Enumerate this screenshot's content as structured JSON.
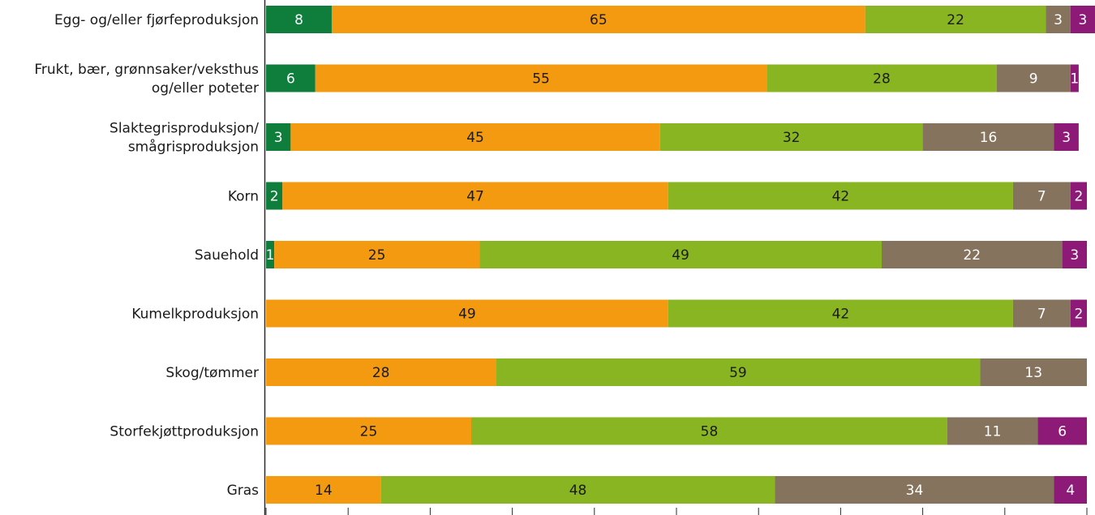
{
  "chart_data": {
    "type": "bar",
    "orientation": "horizontal",
    "stacked": true,
    "title": "",
    "xlabel": "",
    "ylabel": "",
    "xlim": [
      0,
      100
    ],
    "legend": "none",
    "grid": false,
    "categories": [
      [
        "Egg- og/eller fjørfeproduksjon"
      ],
      [
        "Frukt, bær, grønnsaker/veksthus",
        "og/eller poteter"
      ],
      [
        "Slaktegrisproduksjon/",
        "smågrisproduksjon"
      ],
      [
        "Korn"
      ],
      [
        "Sauehold"
      ],
      [
        "Kumelkproduksjon"
      ],
      [
        "Skog/tømmer"
      ],
      [
        "Storfekjøttproduksjon"
      ],
      [
        "Gras"
      ]
    ],
    "series": [
      {
        "color": "#0f7d3c",
        "label_color": "#ffffff",
        "values": [
          8,
          6,
          3,
          2,
          1,
          0,
          0,
          0,
          0
        ]
      },
      {
        "color": "#f39a10",
        "label_color": "#1a1a1a",
        "values": [
          65,
          55,
          45,
          47,
          25,
          49,
          28,
          25,
          14
        ]
      },
      {
        "color": "#8ab522",
        "label_color": "#1a1a1a",
        "values": [
          22,
          28,
          32,
          42,
          49,
          42,
          59,
          58,
          48
        ]
      },
      {
        "color": "#85735e",
        "label_color": "#ffffff",
        "values": [
          3,
          9,
          16,
          7,
          22,
          7,
          13,
          11,
          34
        ]
      },
      {
        "color": "#8e1a78",
        "label_color": "#ffffff",
        "values": [
          3,
          1,
          3,
          2,
          3,
          2,
          0,
          6,
          4
        ]
      }
    ]
  }
}
